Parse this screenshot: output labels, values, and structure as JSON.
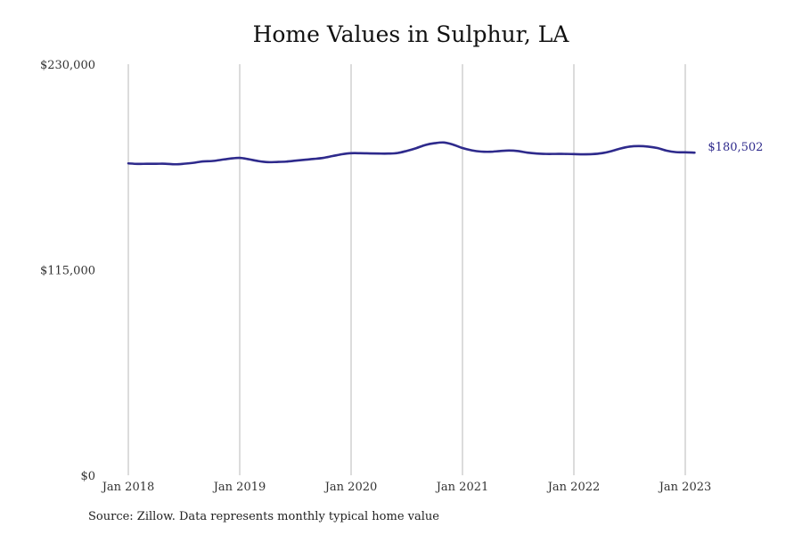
{
  "chart_data": {
    "type": "line",
    "title": "Home Values in Sulphur, LA",
    "xlabel": "",
    "ylabel": "",
    "ylim": [
      0,
      230000
    ],
    "y_ticks": [
      "$230,000",
      "$115,000",
      "$0"
    ],
    "y_tick_values": [
      230000,
      115000,
      0
    ],
    "x_ticks": [
      "Jan 2018",
      "Jan 2019",
      "Jan 2020",
      "Jan 2021",
      "Jan 2022",
      "Jan 2023"
    ],
    "x_tick_values": [
      "2018-01",
      "2019-01",
      "2020-01",
      "2021-01",
      "2022-01",
      "2023-01"
    ],
    "grid": "vertical",
    "line_color": "#2e2a8c",
    "end_label": "$180,502",
    "series": [
      {
        "x": [
          "2018-01",
          "2018-02",
          "2018-03",
          "2018-04",
          "2018-05",
          "2018-06",
          "2018-07",
          "2018-08",
          "2018-09",
          "2018-10",
          "2018-11",
          "2018-12",
          "2019-01",
          "2019-02",
          "2019-03",
          "2019-04",
          "2019-05",
          "2019-06",
          "2019-07",
          "2019-08",
          "2019-09",
          "2019-10",
          "2019-11",
          "2019-12",
          "2020-01",
          "2020-02",
          "2020-03",
          "2020-04",
          "2020-05",
          "2020-06",
          "2020-07",
          "2020-08",
          "2020-09",
          "2020-10",
          "2020-11",
          "2020-12",
          "2021-01",
          "2021-02",
          "2021-03",
          "2021-04",
          "2021-05",
          "2021-06",
          "2021-07",
          "2021-08",
          "2021-09",
          "2021-10",
          "2021-11",
          "2021-12",
          "2022-01",
          "2022-02",
          "2022-03",
          "2022-04",
          "2022-05",
          "2022-06",
          "2022-07",
          "2022-08",
          "2022-09",
          "2022-10",
          "2022-11",
          "2022-12",
          "2023-01",
          "2023-02"
        ],
        "values": [
          174500,
          174200,
          174300,
          174300,
          174300,
          174000,
          174300,
          174800,
          175600,
          175800,
          176500,
          177200,
          177600,
          176800,
          175800,
          175200,
          175300,
          175500,
          176000,
          176500,
          177000,
          177600,
          178600,
          179600,
          180200,
          180200,
          180100,
          180000,
          180000,
          180300,
          181500,
          183000,
          184800,
          185800,
          186200,
          185000,
          183100,
          181800,
          181100,
          181000,
          181400,
          181700,
          181400,
          180500,
          180000,
          179800,
          179800,
          179800,
          179700,
          179600,
          179700,
          180200,
          181300,
          182800,
          183900,
          184200,
          183900,
          183100,
          181600,
          180800,
          180700,
          180502
        ]
      }
    ],
    "source": "Source: Zillow. Data represents monthly typical home value"
  }
}
